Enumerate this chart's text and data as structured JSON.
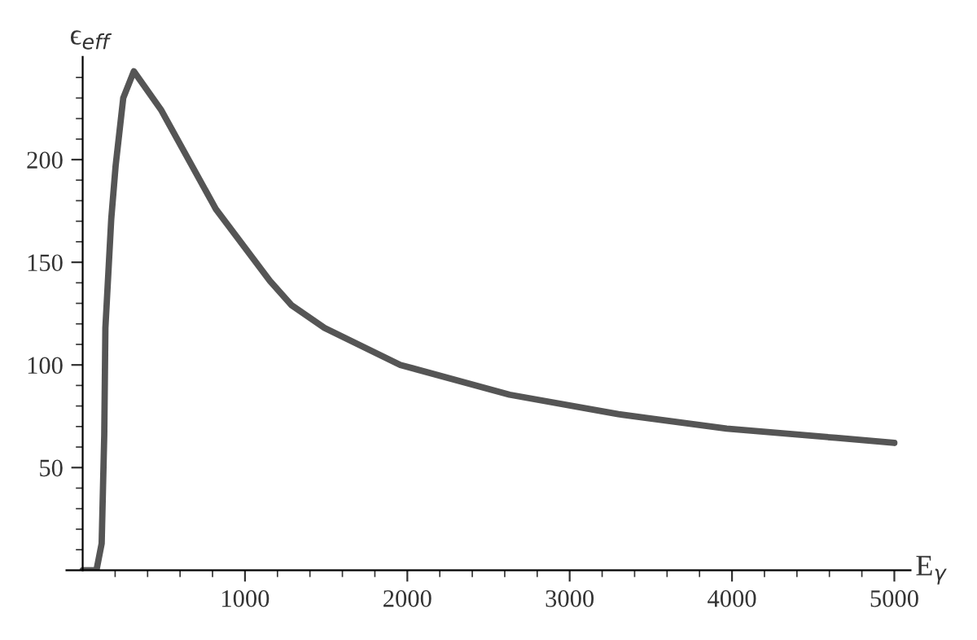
{
  "chart_data": {
    "type": "line",
    "xlabel": "E$_{γ}$",
    "ylabel": "ϵ$_{eff}$",
    "x": [
      0,
      85,
      117,
      133,
      140,
      176,
      203,
      250,
      315,
      485,
      820,
      1153,
      1288,
      1490,
      1957,
      2630,
      3300,
      3967,
      4640,
      5000
    ],
    "series": [
      {
        "color": "#555555",
        "values": [
          0,
          0,
          13,
          66,
          118,
          171,
          197,
          230,
          243,
          224,
          176,
          141,
          129,
          118,
          100,
          85.5,
          76,
          69,
          64.5,
          62
        ]
      }
    ],
    "xlim": [
      -100,
      5100
    ],
    "ylim": [
      0,
      250
    ],
    "xticks": [
      {
        "value": 200,
        "label": null
      },
      {
        "value": 400,
        "label": null
      },
      {
        "value": 600,
        "label": null
      },
      {
        "value": 800,
        "label": null
      },
      1000,
      {
        "value": 1200,
        "label": null
      },
      {
        "value": 1400,
        "label": null
      },
      {
        "value": 1600,
        "label": null
      },
      {
        "value": 1800,
        "label": null
      },
      2000,
      {
        "value": 2200,
        "label": null
      },
      {
        "value": 2400,
        "label": null
      },
      {
        "value": 2600,
        "label": null
      },
      {
        "value": 2800,
        "label": null
      },
      3000,
      {
        "value": 3200,
        "label": null
      },
      {
        "value": 3400,
        "label": null
      },
      {
        "value": 3600,
        "label": null
      },
      {
        "value": 3800,
        "label": null
      },
      4000,
      {
        "value": 4200,
        "label": null
      },
      {
        "value": 4400,
        "label": null
      },
      {
        "value": 4600,
        "label": null
      },
      {
        "value": 4800,
        "label": null
      },
      5000
    ],
    "yticks": [
      {
        "value": 10,
        "label": null
      },
      {
        "value": 20,
        "label": null
      },
      {
        "value": 30,
        "label": null
      },
      {
        "value": 40,
        "label": null
      },
      50,
      {
        "value": 60,
        "label": null
      },
      {
        "value": 70,
        "label": null
      },
      {
        "value": 80,
        "label": null
      },
      {
        "value": 90,
        "label": null
      },
      100,
      {
        "value": 110,
        "label": null
      },
      {
        "value": 120,
        "label": null
      },
      {
        "value": 130,
        "label": null
      },
      {
        "value": 140,
        "label": null
      },
      150,
      {
        "value": 160,
        "label": null
      },
      {
        "value": 170,
        "label": null
      },
      {
        "value": 180,
        "label": null
      },
      {
        "value": 190,
        "label": null
      },
      200,
      {
        "value": 210,
        "label": null
      },
      {
        "value": 220,
        "label": null
      },
      {
        "value": 230,
        "label": null
      },
      {
        "value": 240,
        "label": null
      }
    ],
    "grid": false,
    "marker": "none",
    "line_style": "solid"
  }
}
